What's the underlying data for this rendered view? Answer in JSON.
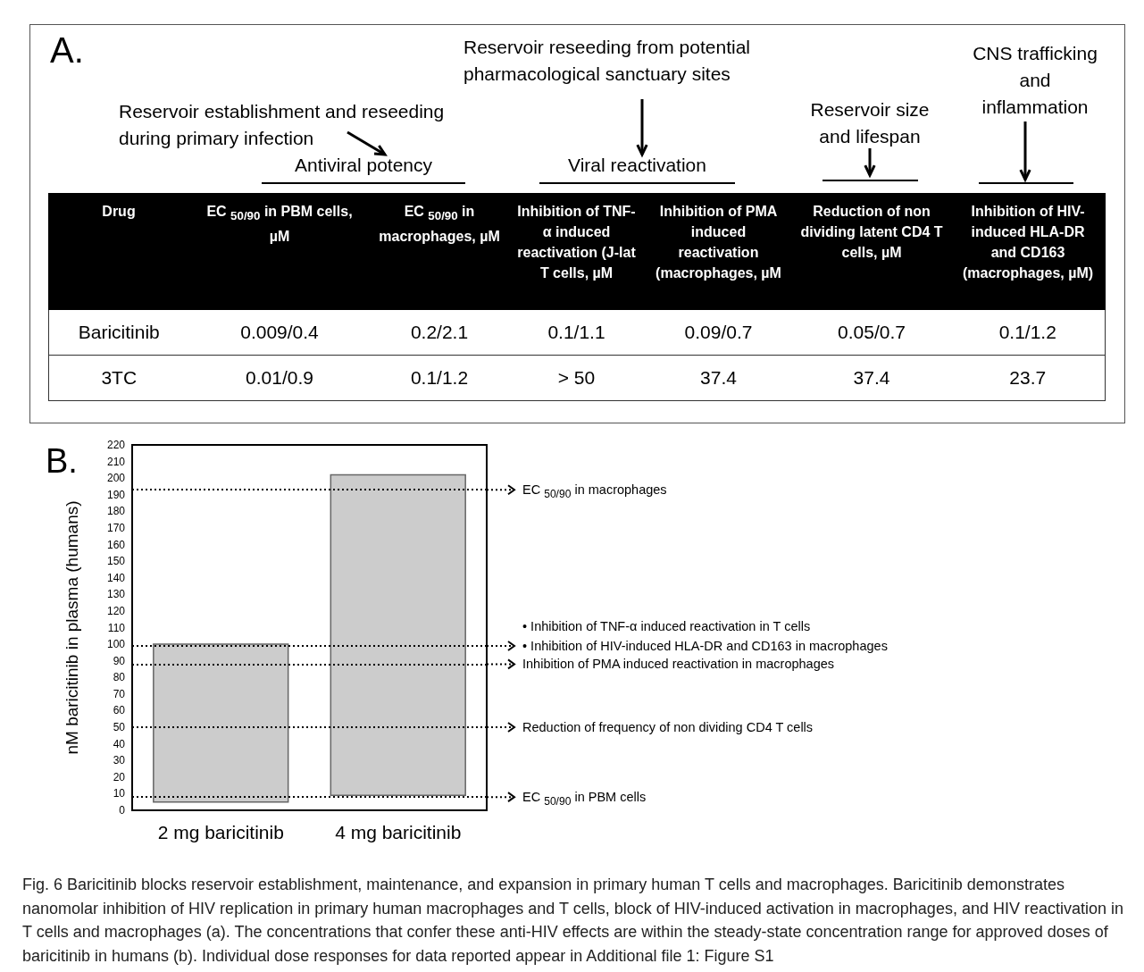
{
  "chart_data": [
    {
      "type": "other",
      "title": "A.",
      "annotations": [
        "Reservoir reseeding from potential pharmacological sanctuary sites",
        "CNS trafficking and inflammation",
        "Reservoir establishment and reseeding during primary infection",
        "Reservoir size and lifespan",
        "Antiviral potency",
        "Viral reactivation"
      ],
      "categories": [
        "Drug",
        "EC $_{50/90}$ in PBM cells, µM",
        "EC $_{50/90}$ in macrophages, µM",
        "Inhibition of TNF-α induced reactivation (J-lat T cells, µM",
        "Inhibition of PMA induced reactivation (macrophages, µM",
        "Reduction of  non dividing latent CD4 T cells, µM",
        "Inhibition of HIV-induced HLA-DR and CD163 (macrophages, µM)"
      ],
      "y_categories": [
        "Baricitinib",
        "3TC"
      ],
      "cell_labels": [
        [
          "0.009/0.4",
          "0.2/2.1",
          "0.1/1.1",
          "0.09/0.7",
          "0.05/0.7",
          "0.1/1.2"
        ],
        [
          "0.01/0.9",
          "0.1/1.2",
          "> 50",
          "37.4",
          "37.4",
          "23.7"
        ]
      ]
    },
    {
      "type": "bar",
      "title": "B.",
      "ylabel": "nM baricitinib in plasma (humans)",
      "categories": [
        "2 mg baricitinib",
        "4 mg baricitinib"
      ],
      "base": [
        5,
        9
      ],
      "values": [
        95,
        193
      ],
      "color": "#cccccc",
      "ylim": [
        0,
        220
      ],
      "yticks": [
        0,
        10,
        20,
        30,
        40,
        50,
        60,
        70,
        80,
        90,
        100,
        110,
        120,
        130,
        140,
        150,
        160,
        170,
        180,
        190,
        200,
        210,
        220
      ],
      "line_style": "dotted",
      "ref_lines": [
        {
          "axis": "y",
          "value": 193,
          "label": "EC $_{50/90}$ in macrophages"
        },
        {
          "axis": "y",
          "value": 99,
          "label": "•   Inhibition of HIV-induced HLA-DR and CD163 in macrophages"
        },
        {
          "axis": "y",
          "value": 88,
          "label": "Inhibition of  PMA induced reactivation in macrophages"
        },
        {
          "axis": "y",
          "value": 50,
          "label": "Reduction of frequency of non dividing CD4 T cells"
        },
        {
          "axis": "y",
          "value": 8,
          "label": "EC $_{50/90}$ in PBM cells"
        }
      ],
      "annotations": [
        "•   Inhibition of TNF-α induced reactivation in T cells",
        "Fig. 6 Baricitinib blocks reservoir establishment, maintenance, and expansion in primary human T cells and macrophages. Baricitinib demonstrates nanomolar inhibition of HIV replication in primary human macrophages and T cells, block of HIV-induced activation in macrophages, and HIV reactivation in T cells and macrophages (a). The concentrations that confer these anti-HIV effects are within the steady-state concentration range for approved doses of baricitinib in humans (b). Individual dose responses for data reported appear in Additional file 1: Figure S1"
      ]
    }
  ]
}
